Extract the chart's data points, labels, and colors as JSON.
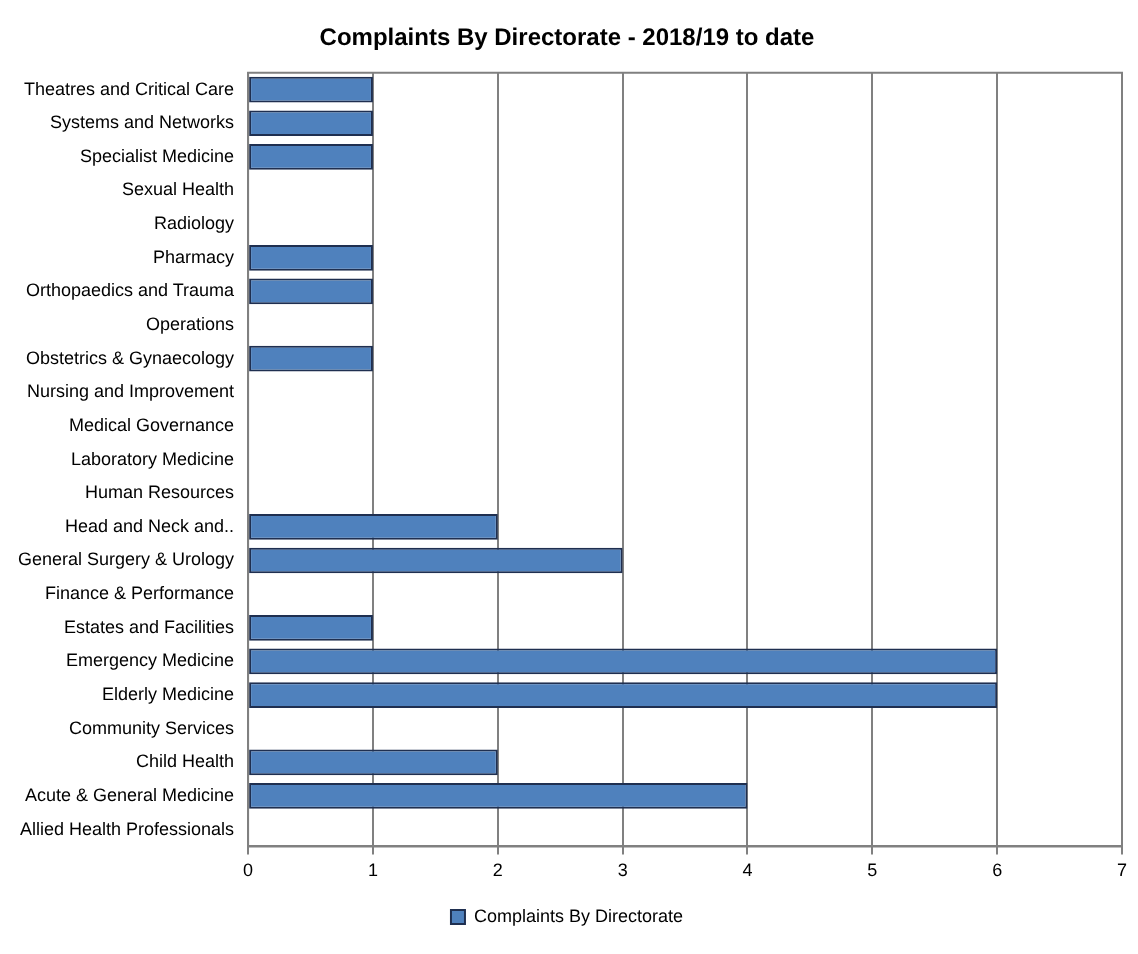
{
  "chart_data": {
    "type": "bar",
    "orientation": "horizontal",
    "title": "Complaints By Directorate - 2018/19 to date",
    "categories": [
      "Theatres and Critical Care",
      "Systems and Networks",
      "Specialist Medicine",
      "Sexual Health",
      "Radiology",
      "Pharmacy",
      "Orthopaedics and Trauma",
      "Operations",
      "Obstetrics & Gynaecology",
      "Nursing and Improvement",
      "Medical Governance",
      "Laboratory Medicine",
      "Human Resources",
      "Head and Neck and..",
      "General Surgery & Urology",
      "Finance & Performance",
      "Estates and Facilities",
      "Emergency Medicine",
      "Elderly Medicine",
      "Community Services",
      "Child Health",
      "Acute & General Medicine",
      "Allied Health Professionals"
    ],
    "series": [
      {
        "name": "Complaints By Directorate",
        "color": "#4f81bd",
        "values": [
          1,
          1,
          1,
          0,
          0,
          1,
          1,
          0,
          1,
          0,
          0,
          0,
          0,
          2,
          3,
          0,
          1,
          6,
          6,
          0,
          2,
          4,
          0
        ]
      }
    ],
    "xlim": [
      0,
      7
    ],
    "xticks": [
      0,
      1,
      2,
      3,
      4,
      5,
      6,
      7
    ],
    "grid": "x",
    "legend": "bottom"
  }
}
